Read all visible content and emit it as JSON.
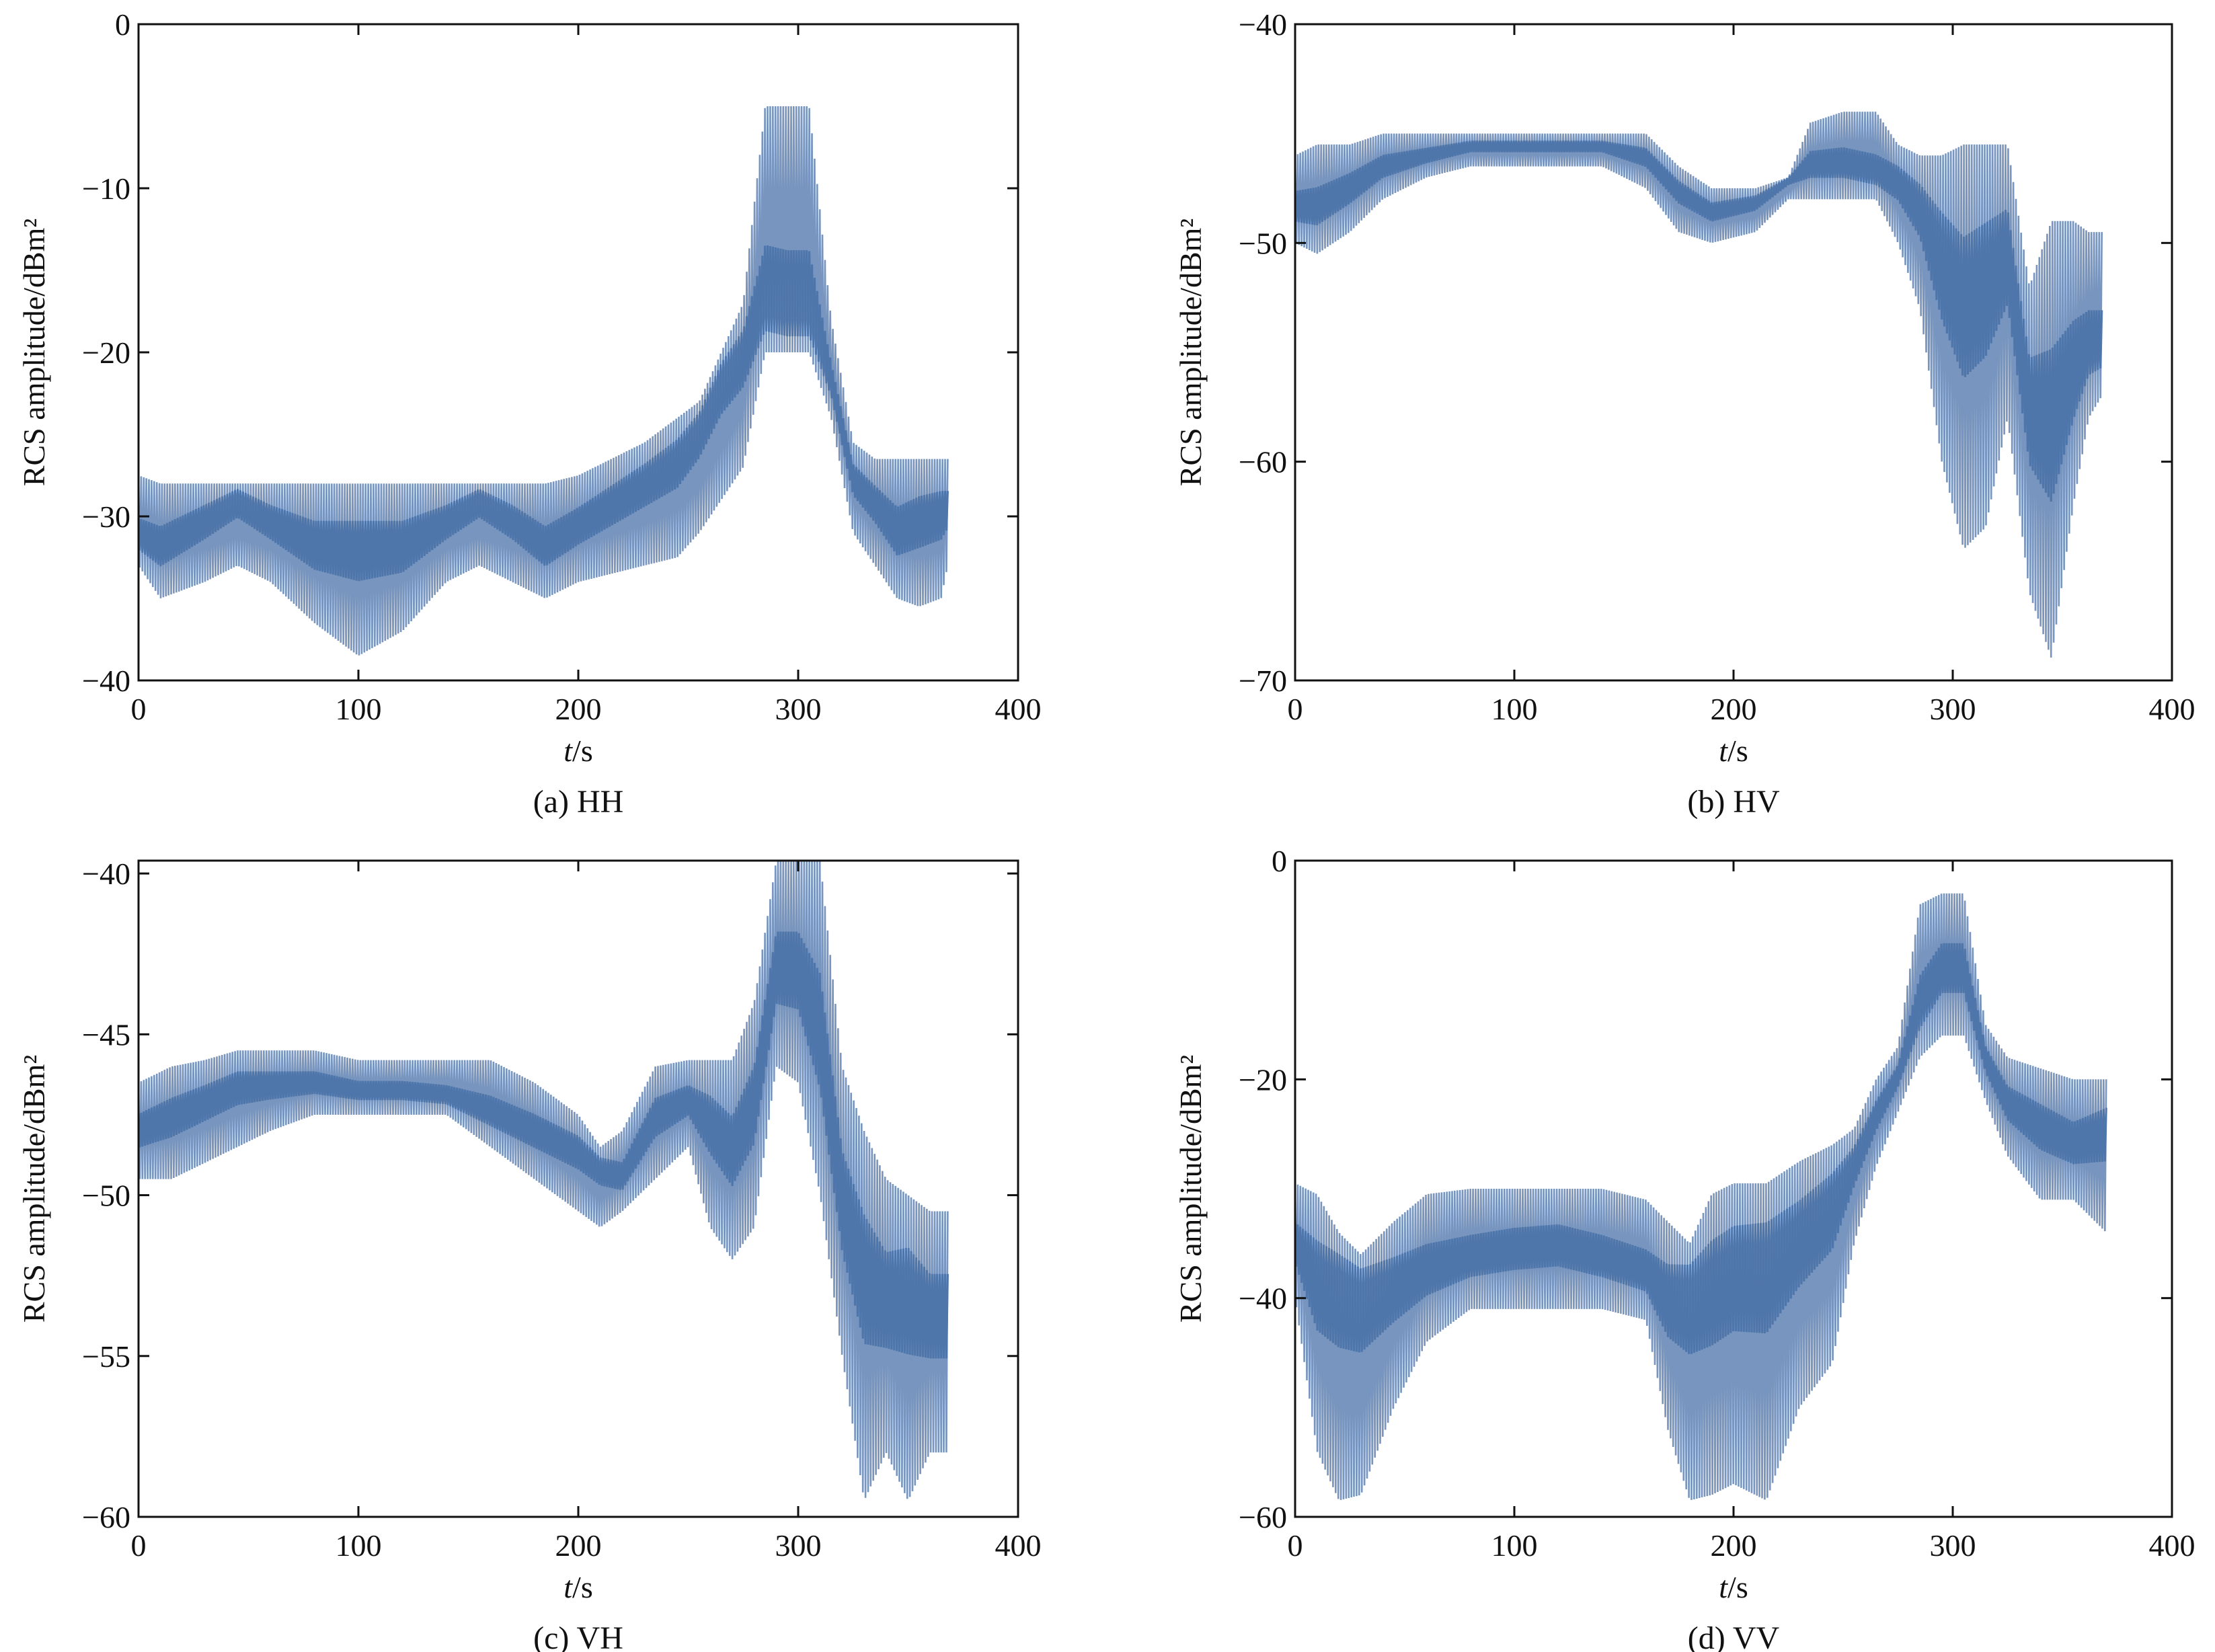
{
  "figure": {
    "panels": [
      {
        "caption": "(a) HH",
        "ylabel": "RCS amplitude/dBm²",
        "xlabel_italic": "t",
        "xlabel_rest": "/s"
      },
      {
        "caption": "(b) HV",
        "ylabel": "RCS amplitude/dBm²",
        "xlabel_italic": "t",
        "xlabel_rest": "/s"
      },
      {
        "caption": "(c) VH",
        "ylabel": "RCS amplitude/dBm²",
        "xlabel_italic": "t",
        "xlabel_rest": "/s"
      },
      {
        "caption": "(d) VV",
        "ylabel": "RCS amplitude/dBm²",
        "xlabel_italic": "t",
        "xlabel_rest": "/s"
      }
    ]
  },
  "chart_data": [
    {
      "type": "line",
      "caption": "(a) HH",
      "xlabel": "t/s",
      "ylabel": "RCS amplitude/dBm²",
      "xlim": [
        0,
        400
      ],
      "ylim": [
        -40,
        0
      ],
      "xticks": [
        0,
        100,
        200,
        300,
        400
      ],
      "yticks": [
        0,
        -10,
        -20,
        -30,
        -40
      ],
      "x_extent": [
        0,
        368
      ],
      "color": "#4a72a8",
      "series": [
        {
          "x": [
            0,
            10,
            30,
            45,
            60,
            80,
            100,
            120,
            140,
            155,
            170,
            185,
            200,
            215,
            230,
            245,
            255,
            265,
            275,
            285,
            295,
            305,
            315,
            325,
            335,
            345,
            355,
            365,
            368
          ],
          "upper": [
            -27.5,
            -28,
            -28,
            -28,
            -28,
            -28,
            -28,
            -28,
            -28,
            -28,
            -28,
            -28,
            -27.5,
            -26.5,
            -25.5,
            -24,
            -23,
            -20,
            -17,
            -5,
            -5,
            -5,
            -18,
            -25.5,
            -26.5,
            -26.5,
            -26.5,
            -26.5,
            -26.5
          ],
          "mid": [
            -31.5,
            -32,
            -30,
            -28.5,
            -30,
            -31.5,
            -31.5,
            -31.5,
            -30,
            -28.5,
            -30,
            -32,
            -30.5,
            -29,
            -27.5,
            -26,
            -24,
            -21,
            -19.5,
            -18,
            -18.5,
            -18.5,
            -22,
            -27.5,
            -29,
            -31,
            -30,
            -29.5,
            -29.5
          ],
          "lower": [
            -33,
            -35,
            -34,
            -33,
            -34,
            -36.5,
            -38.5,
            -37,
            -34,
            -33,
            -34,
            -35,
            -34,
            -33.5,
            -33,
            -32.5,
            -31,
            -29,
            -27,
            -20,
            -20,
            -20,
            -24,
            -31,
            -33,
            -35,
            -35.5,
            -35,
            -33
          ]
        }
      ]
    },
    {
      "type": "line",
      "caption": "(b) HV",
      "xlabel": "t/s",
      "ylabel": "RCS amplitude/dBm²",
      "xlim": [
        0,
        400
      ],
      "ylim": [
        -70,
        -40
      ],
      "xticks": [
        0,
        100,
        200,
        300,
        400
      ],
      "yticks": [
        -40,
        -50,
        -60,
        -70
      ],
      "x_extent": [
        0,
        368
      ],
      "color": "#4a72a8",
      "series": [
        {
          "x": [
            0,
            10,
            25,
            40,
            60,
            80,
            100,
            120,
            140,
            160,
            175,
            190,
            210,
            225,
            235,
            250,
            265,
            275,
            285,
            295,
            305,
            315,
            325,
            335,
            345,
            355,
            362,
            368
          ],
          "upper": [
            -46,
            -45.5,
            -45.5,
            -45,
            -45,
            -45,
            -45,
            -45,
            -45,
            -45,
            -46.5,
            -47.5,
            -47.5,
            -47,
            -44.5,
            -44,
            -44,
            -45.5,
            -46,
            -46,
            -45.5,
            -45.5,
            -45.5,
            -52,
            -49,
            -49,
            -49.5,
            -49.5
          ],
          "mid": [
            -48.5,
            -48.5,
            -47.5,
            -46.5,
            -46,
            -45.5,
            -45.5,
            -45.5,
            -45.5,
            -46,
            -47.5,
            -48.5,
            -48,
            -47,
            -46.5,
            -46.5,
            -47,
            -47,
            -48,
            -50,
            -52,
            -51,
            -50,
            -57,
            -58,
            -56,
            -55,
            -55
          ],
          "lower": [
            -50,
            -50.5,
            -49.5,
            -48,
            -47,
            -46.5,
            -46.5,
            -46.5,
            -46.5,
            -47.5,
            -49.5,
            -50,
            -49.5,
            -48,
            -48,
            -48,
            -48,
            -50,
            -53,
            -60,
            -64,
            -63,
            -58,
            -66,
            -69,
            -62,
            -58,
            -57
          ]
        }
      ]
    },
    {
      "type": "line",
      "caption": "(c) VH",
      "xlabel": "t/s",
      "ylabel": "RCS amplitude/dBm²",
      "xlim": [
        0,
        400
      ],
      "ylim": [
        -60,
        -39.6
      ],
      "xticks": [
        0,
        100,
        200,
        300,
        400
      ],
      "yticks": [
        -40,
        -45,
        -50,
        -55,
        -60
      ],
      "x_extent": [
        0,
        368
      ],
      "color": "#4a72a8",
      "series": [
        {
          "x": [
            0,
            15,
            30,
            45,
            60,
            80,
            100,
            120,
            140,
            160,
            180,
            200,
            210,
            220,
            235,
            250,
            260,
            270,
            280,
            290,
            300,
            310,
            320,
            330,
            340,
            350,
            360,
            368
          ],
          "upper": [
            -46.5,
            -46,
            -45.8,
            -45.5,
            -45.5,
            -45.5,
            -45.8,
            -45.8,
            -45.8,
            -45.8,
            -46.5,
            -47.5,
            -48.5,
            -48,
            -46,
            -45.8,
            -45.8,
            -45.8,
            -44,
            -39.6,
            -39.6,
            -39.6,
            -46,
            -48,
            -49.5,
            -50,
            -50.5,
            -50.5
          ],
          "mid": [
            -48,
            -47.5,
            -47,
            -46.5,
            -46.5,
            -46.5,
            -46.8,
            -46.8,
            -47,
            -47.5,
            -48,
            -48.5,
            -49,
            -49.5,
            -47.5,
            -47,
            -47.5,
            -48.5,
            -47,
            -43,
            -43,
            -45,
            -50,
            -52,
            -53,
            -52.5,
            -53.5,
            -53.5
          ],
          "lower": [
            -49.5,
            -49.5,
            -49,
            -48.5,
            -48,
            -47.5,
            -47.5,
            -47.5,
            -47.5,
            -48.5,
            -49.5,
            -50.5,
            -51,
            -50.5,
            -49.5,
            -48.5,
            -51,
            -52,
            -51,
            -46,
            -46.5,
            -50,
            -55,
            -59.5,
            -58,
            -59.5,
            -58,
            -58
          ]
        }
      ]
    },
    {
      "type": "line",
      "caption": "(d) VV",
      "xlabel": "t/s",
      "ylabel": "RCS amplitude/dBm²",
      "xlim": [
        0,
        400
      ],
      "ylim": [
        -60,
        0
      ],
      "xticks": [
        0,
        100,
        200,
        300,
        400
      ],
      "yticks": [
        0,
        -20,
        -40,
        -60
      ],
      "x_extent": [
        0,
        370
      ],
      "color": "#4a72a8",
      "series": [
        {
          "x": [
            0,
            10,
            20,
            30,
            45,
            60,
            80,
            100,
            120,
            140,
            160,
            170,
            180,
            190,
            200,
            215,
            230,
            245,
            255,
            265,
            275,
            285,
            295,
            305,
            315,
            325,
            340,
            355,
            370
          ],
          "upper": [
            -29.5,
            -30.5,
            -34,
            -36,
            -33,
            -30.5,
            -30,
            -30,
            -30,
            -30,
            -31,
            -33,
            -35,
            -30.5,
            -29.5,
            -29.5,
            -27.5,
            -26,
            -24.5,
            -20,
            -17,
            -4,
            -3,
            -3,
            -15,
            -18,
            -19,
            -20,
            -20
          ],
          "mid": [
            -35,
            -37,
            -37,
            -38,
            -38,
            -37.5,
            -36.5,
            -35.5,
            -35,
            -36.5,
            -38,
            -39,
            -38,
            -37,
            -35.5,
            -35,
            -33,
            -30,
            -27,
            -23,
            -19.5,
            -14,
            -10,
            -10,
            -18,
            -22,
            -24,
            -26,
            -24
          ],
          "lower": [
            -40,
            -54,
            -58.5,
            -58,
            -50,
            -44,
            -41,
            -41,
            -41,
            -41,
            -42,
            -52,
            -58.5,
            -58,
            -57,
            -58.5,
            -50,
            -46,
            -35,
            -28,
            -23,
            -18,
            -16,
            -16,
            -22,
            -27,
            -31,
            -31,
            -34
          ]
        }
      ]
    }
  ]
}
